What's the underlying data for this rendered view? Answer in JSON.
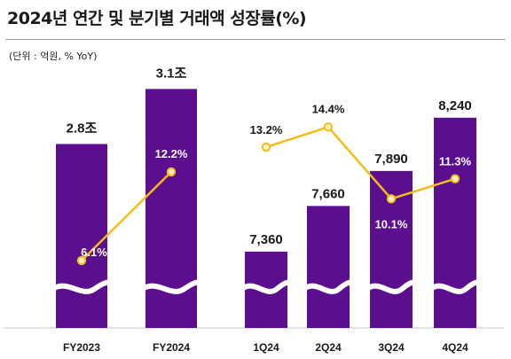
{
  "title": "2024년 연간 및 분기별 거래액 성장률(%)",
  "unit_note": "(단위 : 억원, % YoY)",
  "colors": {
    "bar": "#5b0f8e",
    "line": "#f5bc18",
    "marker_fill": "#fff1c4",
    "text": "#1a1a1a",
    "pct_text_on_bar": "#ffffff",
    "pct_text_off_bar": "#1a1a1a"
  },
  "chart_data": [
    {
      "type": "bar",
      "categories": [
        "FY2023",
        "FY2024"
      ],
      "series": [
        {
          "values": [
            2.8,
            3.1
          ],
          "labels": [
            "2.8조",
            "3.1조"
          ]
        },
        {
          "values": [
            6.1,
            12.2
          ],
          "labels": [
            "6.1%",
            "12.2%"
          ]
        }
      ],
      "broken_axis": true
    },
    {
      "type": "bar",
      "categories": [
        "1Q24",
        "2Q24",
        "3Q24",
        "4Q24"
      ],
      "series": [
        {
          "values": [
            7360,
            7660,
            7890,
            8240
          ],
          "labels": [
            "7,360",
            "7,660",
            "7,890",
            "8,240"
          ]
        },
        {
          "values": [
            13.2,
            14.4,
            10.1,
            11.3
          ],
          "labels": [
            "13.2%",
            "14.4%",
            "10.1%",
            "11.3%"
          ]
        }
      ],
      "broken_axis": true
    }
  ]
}
